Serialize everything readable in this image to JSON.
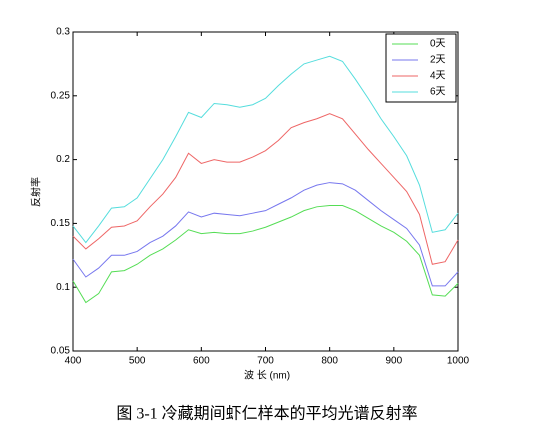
{
  "chart_data": {
    "type": "line",
    "xlabel": "波 长 (nm)",
    "ylabel": "反射率",
    "caption": "图 3-1 冷藏期间虾仁样本的平均光谱反射率",
    "x": [
      400,
      420,
      440,
      460,
      480,
      500,
      520,
      540,
      560,
      580,
      600,
      620,
      640,
      660,
      680,
      700,
      720,
      740,
      760,
      780,
      800,
      820,
      840,
      860,
      880,
      900,
      920,
      940,
      960,
      980,
      1000
    ],
    "series": [
      {
        "name": "0天",
        "color": "#55dd55",
        "values": [
          0.105,
          0.088,
          0.095,
          0.112,
          0.113,
          0.118,
          0.125,
          0.13,
          0.137,
          0.145,
          0.142,
          0.143,
          0.142,
          0.142,
          0.144,
          0.147,
          0.151,
          0.155,
          0.16,
          0.163,
          0.164,
          0.164,
          0.16,
          0.154,
          0.148,
          0.143,
          0.136,
          0.125,
          0.094,
          0.093,
          0.103
        ]
      },
      {
        "name": "2天",
        "color": "#7777ee",
        "values": [
          0.122,
          0.108,
          0.115,
          0.125,
          0.125,
          0.128,
          0.135,
          0.14,
          0.148,
          0.159,
          0.155,
          0.158,
          0.157,
          0.156,
          0.158,
          0.16,
          0.165,
          0.17,
          0.176,
          0.18,
          0.182,
          0.181,
          0.176,
          0.168,
          0.16,
          0.153,
          0.146,
          0.133,
          0.101,
          0.101,
          0.112
        ]
      },
      {
        "name": "4天",
        "color": "#ee6666",
        "values": [
          0.14,
          0.13,
          0.138,
          0.147,
          0.148,
          0.152,
          0.163,
          0.173,
          0.186,
          0.205,
          0.197,
          0.2,
          0.198,
          0.198,
          0.202,
          0.207,
          0.215,
          0.225,
          0.229,
          0.232,
          0.236,
          0.232,
          0.22,
          0.208,
          0.197,
          0.186,
          0.175,
          0.157,
          0.118,
          0.12,
          0.137
        ]
      },
      {
        "name": "6天",
        "color": "#55dddd",
        "values": [
          0.148,
          0.135,
          0.148,
          0.162,
          0.163,
          0.17,
          0.185,
          0.2,
          0.218,
          0.237,
          0.233,
          0.244,
          0.243,
          0.241,
          0.243,
          0.248,
          0.258,
          0.267,
          0.275,
          0.278,
          0.281,
          0.277,
          0.263,
          0.248,
          0.232,
          0.218,
          0.203,
          0.18,
          0.143,
          0.145,
          0.158
        ]
      }
    ],
    "xlim": [
      400,
      1000
    ],
    "xticks": [
      400,
      500,
      600,
      700,
      800,
      900,
      1000
    ],
    "ylim": [
      0.05,
      0.3
    ],
    "yticks": [
      0.05,
      0.1,
      0.15,
      0.2,
      0.25,
      0.3
    ],
    "grid": false,
    "legend": "upper-right"
  }
}
